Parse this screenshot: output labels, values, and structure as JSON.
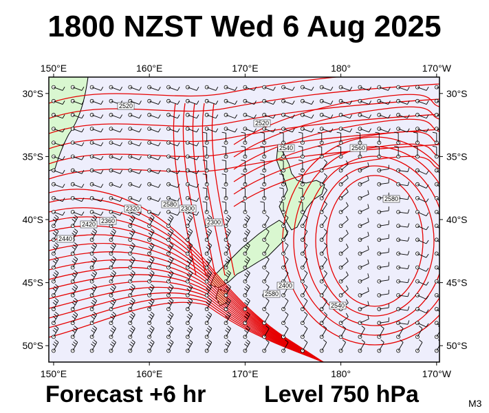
{
  "title": "1800 NZST Wed 6 Aug 2025",
  "footer": {
    "forecast": "Forecast +6 hr",
    "level": "Level 750 hPa",
    "code": "M3"
  },
  "map": {
    "projection": "lat-lon",
    "lon_range": [
      149.5,
      190.3
    ],
    "lat_range": [
      -51.3,
      -28.7
    ],
    "lon_ticks": [
      {
        "lon": 150,
        "label": "150°E"
      },
      {
        "lon": 160,
        "label": "160°E"
      },
      {
        "lon": 170,
        "label": "170°E"
      },
      {
        "lon": 180,
        "label": "180°"
      },
      {
        "lon": 190,
        "label": "170°W"
      }
    ],
    "lat_ticks": [
      {
        "lat": -30,
        "label": "30°S"
      },
      {
        "lat": -35,
        "label": "35°S"
      },
      {
        "lat": -40,
        "label": "40°S"
      },
      {
        "lat": -45,
        "label": "45°S"
      },
      {
        "lat": -50,
        "label": "50°S"
      }
    ],
    "colors": {
      "sea": "#eeeefc",
      "land": "#d9f7d0",
      "contour": "#e60000",
      "barb": "#000000"
    },
    "contour_labels": [
      "2520",
      "2520",
      "2540",
      "2560",
      "2580",
      "2580",
      "2300",
      "2300",
      "2320",
      "2360",
      "2420",
      "2440",
      "2400",
      "2540",
      "2580"
    ],
    "features": [
      "contours",
      "wind-barbs",
      "coastlines"
    ]
  }
}
